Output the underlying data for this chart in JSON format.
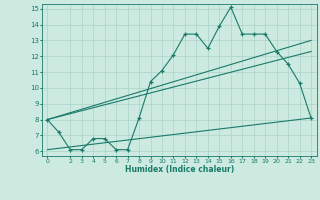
{
  "title": "",
  "xlabel": "Humidex (Indice chaleur)",
  "ylabel": "",
  "bg_color": "#cceae0",
  "line_color": "#1a7a6a",
  "grid_color": "#aad4c8",
  "xlim": [
    -0.5,
    23.5
  ],
  "ylim": [
    5.7,
    15.3
  ],
  "xticks": [
    0,
    2,
    3,
    4,
    5,
    6,
    7,
    8,
    9,
    10,
    11,
    12,
    13,
    14,
    15,
    16,
    17,
    18,
    19,
    20,
    21,
    22,
    23
  ],
  "yticks": [
    6,
    7,
    8,
    9,
    10,
    11,
    12,
    13,
    14,
    15
  ],
  "main_x": [
    0,
    1,
    2,
    3,
    4,
    5,
    6,
    7,
    8,
    9,
    10,
    11,
    12,
    13,
    14,
    15,
    16,
    17,
    18,
    19,
    20,
    21,
    22,
    23
  ],
  "main_y": [
    8.0,
    7.2,
    6.1,
    6.1,
    6.8,
    6.8,
    6.1,
    6.1,
    8.1,
    10.4,
    11.1,
    12.1,
    13.4,
    13.4,
    12.5,
    13.9,
    15.1,
    13.4,
    13.4,
    13.4,
    12.3,
    11.5,
    10.3,
    8.1
  ],
  "line1_x": [
    0,
    23
  ],
  "line1_y": [
    8.0,
    13.0
  ],
  "line2_x": [
    0,
    23
  ],
  "line2_y": [
    8.0,
    12.3
  ],
  "line3_x": [
    0,
    23
  ],
  "line3_y": [
    6.1,
    8.1
  ]
}
